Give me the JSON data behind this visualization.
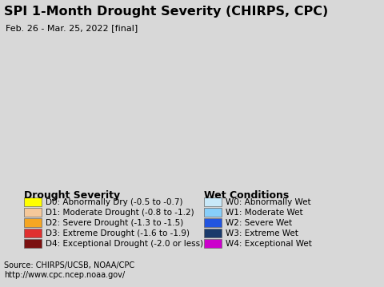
{
  "title": "SPI 1-Month Drought Severity (CHIRPS, CPC)",
  "subtitle": "Feb. 26 - Mar. 25, 2022 [final]",
  "map_bg_color": "#add8e6",
  "legend_bg_color": "#d8d8d8",
  "source_bg_color": "#d0d0d0",
  "drought_labels": [
    "D0: Abnormally Dry (-0.5 to -0.7)",
    "D1: Moderate Drought (-0.8 to -1.2)",
    "D2: Severe Drought (-1.3 to -1.5)",
    "D3: Extreme Drought (-1.6 to -1.9)",
    "D4: Exceptional Drought (-2.0 or less)"
  ],
  "drought_colors": [
    "#ffff00",
    "#f5c89a",
    "#f5a623",
    "#e03030",
    "#7b1010"
  ],
  "wet_labels": [
    "W0: Abnormally Wet",
    "W1: Moderate Wet",
    "W2: Severe Wet",
    "W3: Extreme Wet",
    "W4: Exceptional Wet"
  ],
  "wet_colors": [
    "#c8e8f8",
    "#87cefa",
    "#2255e0",
    "#1a3a6b",
    "#cc00cc"
  ],
  "source_line1": "Source: CHIRPS/UCSB, NOAA/CPC",
  "source_line2": "http://www.cpc.ncep.noaa.gov/",
  "title_fontsize": 11.5,
  "subtitle_fontsize": 8,
  "legend_title_fontsize": 9,
  "legend_item_fontsize": 7.5,
  "source_fontsize": 7
}
